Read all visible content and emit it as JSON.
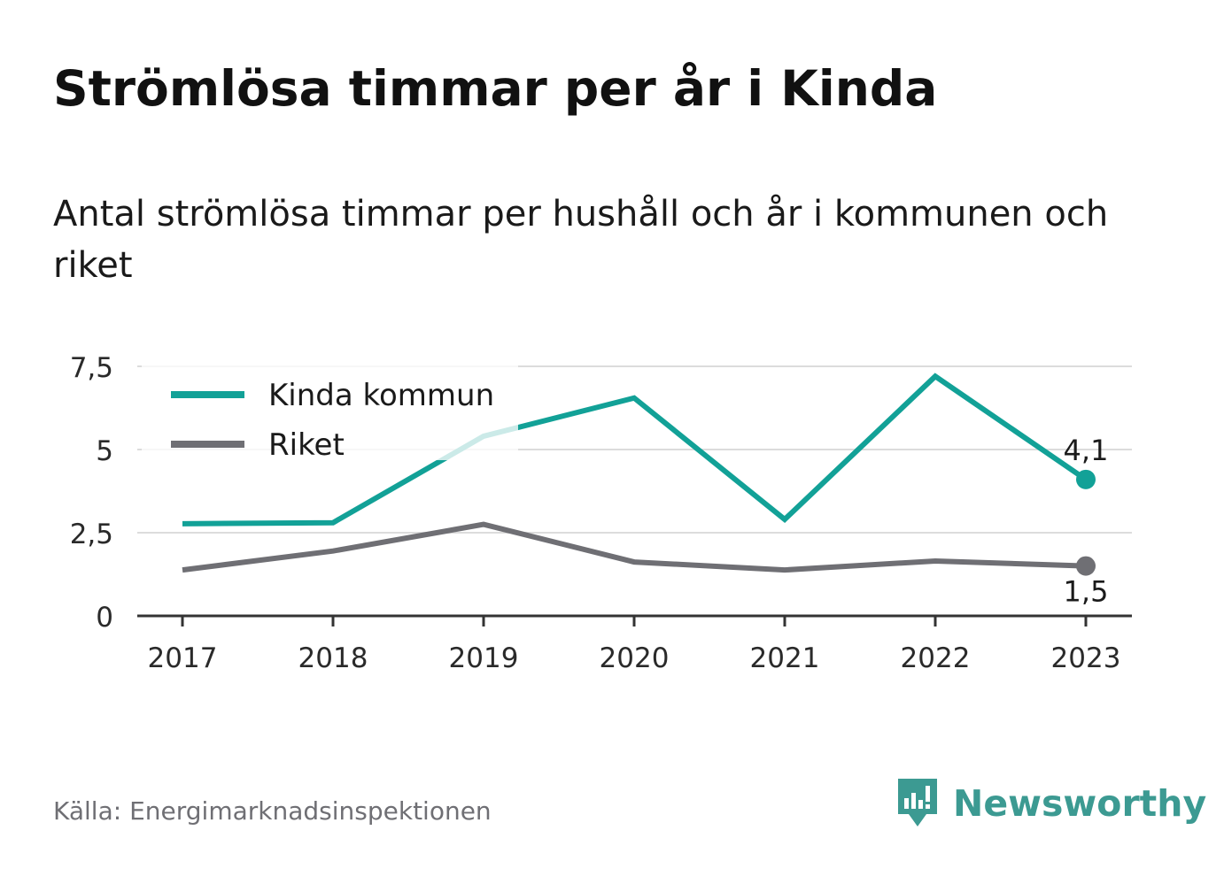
{
  "title": "Strömlösa timmar per år i Kinda",
  "subtitle": "Antal strömlösa timmar per hushåll och år i kommunen och riket",
  "source": "Källa: Energimarknadsinspektionen",
  "brand": {
    "name": "Newsworthy",
    "icon": "newsworthy-logo-icon",
    "color": "#3c9a92"
  },
  "chart_data": {
    "type": "line",
    "x": [
      "2017",
      "2018",
      "2019",
      "2020",
      "2021",
      "2022",
      "2023"
    ],
    "series": [
      {
        "name": "Kinda kommun",
        "color": "#12a197",
        "values": [
          2.77,
          2.8,
          5.4,
          6.55,
          2.9,
          7.2,
          4.1
        ],
        "end_label": "4,1"
      },
      {
        "name": "Riket",
        "color": "#6f6f74",
        "values": [
          1.38,
          1.95,
          2.75,
          1.62,
          1.38,
          1.65,
          1.5
        ],
        "end_label": "1,5"
      }
    ],
    "y_ticks": [
      {
        "value": 0,
        "label": "0"
      },
      {
        "value": 2.5,
        "label": "2,5"
      },
      {
        "value": 5,
        "label": "5"
      },
      {
        "value": 7.5,
        "label": "7,5"
      }
    ],
    "ylim": [
      0,
      7.5
    ],
    "grid": true,
    "legend": "top-left"
  }
}
